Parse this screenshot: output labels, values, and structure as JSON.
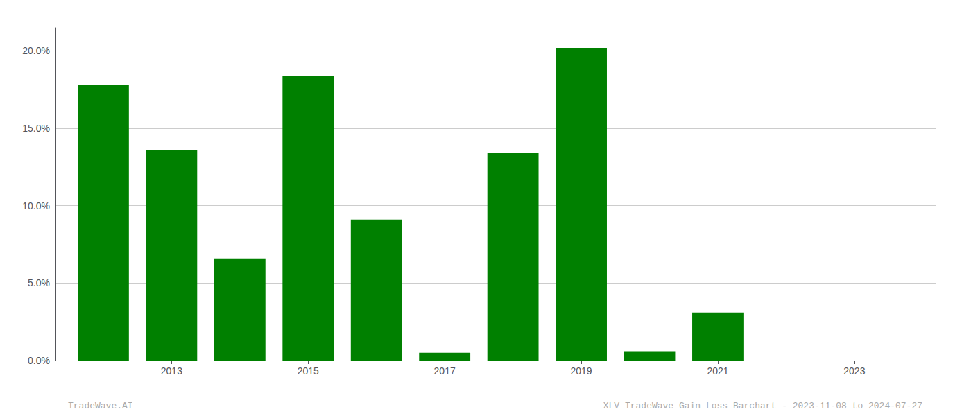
{
  "chart_data": {
    "type": "bar",
    "x": [
      2012,
      2013,
      2014,
      2015,
      2016,
      2017,
      2018,
      2019,
      2020,
      2021,
      2022,
      2023
    ],
    "values": [
      17.8,
      13.6,
      6.6,
      18.4,
      9.1,
      0.5,
      13.4,
      20.2,
      0.6,
      3.1,
      0.0,
      0.0
    ],
    "color": "#008000",
    "xlim": [
      2011.3,
      2024.2
    ],
    "xticks": [
      2013,
      2015,
      2017,
      2019,
      2021,
      2023
    ],
    "ylim": [
      0,
      21.5
    ],
    "yticks": [
      {
        "value": 0.0,
        "label": "0.0%"
      },
      {
        "value": 5.0,
        "label": "5.0%"
      },
      {
        "value": 10.0,
        "label": "10.0%"
      },
      {
        "value": 15.0,
        "label": "15.0%"
      },
      {
        "value": 20.0,
        "label": "20.0%"
      }
    ],
    "grid": true,
    "annotations": [
      "TradeWave.AI",
      "XLV TradeWave Gain Loss Barchart - 2023-11-08 to 2024-07-27"
    ]
  }
}
